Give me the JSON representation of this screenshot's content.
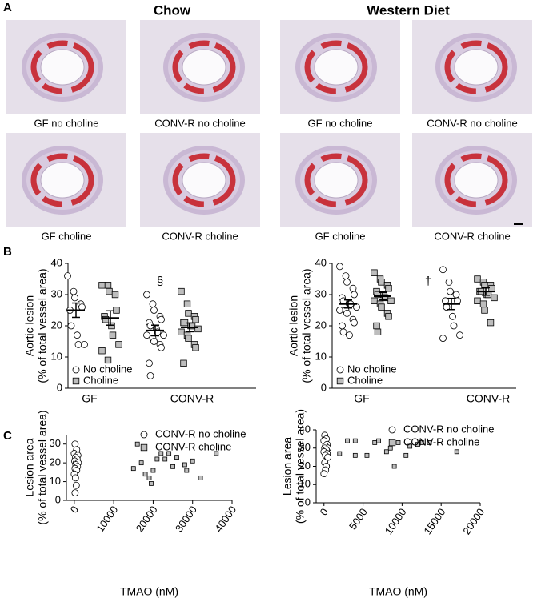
{
  "panel_labels": [
    "A",
    "B",
    "C"
  ],
  "histology": {
    "groups": [
      {
        "title": "Chow",
        "captions": [
          "GF no choline",
          "CONV-R no choline",
          "GF choline",
          "CONV-R choline"
        ]
      },
      {
        "title": "Western Diet",
        "captions": [
          "GF no choline",
          "CONV-R no choline",
          "GF choline",
          "CONV-R choline"
        ]
      }
    ]
  },
  "chart_data": [
    {
      "type": "dot",
      "categories": [
        "GF",
        "CONV-R"
      ],
      "ylabel": [
        "Aortic lesion",
        "(% of total vessel area)"
      ],
      "ylim": [
        0,
        40
      ],
      "yticks": [
        0,
        10,
        20,
        30,
        40
      ],
      "annotation": "§",
      "legend": "lower left",
      "series": [
        {
          "name": "No choline",
          "marker": "circle",
          "color": "#ffffff",
          "values": [
            [
              36,
              31,
              29,
              27,
              26,
              25,
              20,
              17,
              14,
              14
            ],
            [
              30,
              27,
              25,
              23,
              22,
              21,
              20,
              19,
              18,
              17,
              17,
              16,
              15,
              14,
              13,
              8,
              4
            ]
          ],
          "mean": [
            25,
            18.5
          ],
          "sem": [
            2.3,
            1.7
          ]
        },
        {
          "name": "Choline",
          "marker": "square",
          "color": "#bdbdbd",
          "values": [
            [
              33,
              33,
              31,
              30,
              25,
              23,
              22,
              20,
              17,
              14,
              12,
              9
            ],
            [
              31,
              27,
              24,
              23,
              22,
              21,
              21,
              20,
              20,
              19,
              18,
              17,
              16,
              14,
              13,
              8
            ]
          ],
          "mean": [
            22.5,
            19.5
          ],
          "sem": [
            2.3,
            1.4
          ]
        }
      ]
    },
    {
      "type": "dot",
      "categories": [
        "GF",
        "CONV-R"
      ],
      "ylabel": [
        "Aortic lesion",
        "(% of total vessel area)"
      ],
      "ylim": [
        0,
        40
      ],
      "yticks": [
        0,
        10,
        20,
        30,
        40
      ],
      "annotation": "†",
      "legend": "lower left",
      "series": [
        {
          "name": "No choline",
          "marker": "circle",
          "color": "#ffffff",
          "values": [
            [
              39,
              36,
              34,
              32,
              30,
              29,
              28,
              27,
              27,
              26,
              25,
              25,
              24,
              22,
              21,
              20,
              18,
              17
            ],
            [
              38,
              34,
              31,
              30,
              28,
              28,
              26,
              23,
              20,
              17,
              16
            ]
          ],
          "mean": [
            27,
            27
          ],
          "sem": [
            1.3,
            1.8
          ]
        },
        {
          "name": "Choline",
          "marker": "square",
          "color": "#bdbdbd",
          "values": [
            [
              37,
              35,
              34,
              33,
              32,
              31,
              30,
              30,
              29,
              28,
              28,
              27,
              26,
              24,
              23,
              20,
              18
            ],
            [
              35,
              34,
              33,
              33,
              32,
              31,
              31,
              30,
              30,
              29,
              28,
              27,
              25,
              21
            ]
          ],
          "mean": [
            29.5,
            31
          ],
          "sem": [
            1.2,
            1.2
          ]
        }
      ]
    },
    {
      "type": "scatter",
      "xlabel": "TMAO (nM)",
      "ylabel": [
        "Lesion area",
        "(% of total vessel area)"
      ],
      "xlim": [
        -2000,
        40000
      ],
      "xticks": [
        0,
        10000,
        20000,
        30000,
        40000
      ],
      "ylim": [
        0,
        35
      ],
      "yticks": [
        0,
        10,
        20,
        30
      ],
      "legend": "upper right",
      "series": [
        {
          "name": "CONV-R no choline",
          "marker": "circle",
          "color": "#ffffff",
          "x": [
            200,
            600,
            0,
            900,
            300,
            700,
            100,
            500,
            1000,
            400,
            800,
            200,
            600,
            0,
            300,
            500,
            200
          ],
          "y": [
            30,
            27,
            25,
            24,
            23,
            22,
            21,
            20,
            20,
            19,
            18,
            17,
            16,
            14,
            12,
            8,
            4
          ]
        },
        {
          "name": "CONV-R choline",
          "marker": "square",
          "color": "#bdbdbd",
          "x": [
            16000,
            15000,
            17000,
            18000,
            19000,
            20000,
            19500,
            21000,
            22000,
            23000,
            24000,
            25000,
            26000,
            28000,
            28500,
            30000,
            32000,
            36000
          ],
          "y": [
            30,
            17,
            20,
            14,
            12,
            16,
            9,
            22,
            25,
            22,
            25,
            18,
            23,
            19,
            16,
            21,
            12,
            25
          ]
        }
      ]
    },
    {
      "type": "scatter",
      "xlabel": "TMAO (nM)",
      "ylabel": [
        "Lesion area",
        "(% of total vessel area)"
      ],
      "xlim": [
        -1000,
        20000
      ],
      "xticks": [
        0,
        5000,
        10000,
        15000,
        20000
      ],
      "ylim": [
        0,
        40
      ],
      "yticks": [
        0,
        10,
        20,
        30,
        40
      ],
      "legend": "upper right",
      "series": [
        {
          "name": "CONV-R no choline",
          "marker": "circle",
          "color": "#ffffff",
          "x": [
            100,
            300,
            0,
            400,
            200,
            500,
            100,
            300,
            0,
            400,
            200,
            500,
            100,
            300,
            200,
            0
          ],
          "y": [
            37,
            35,
            34,
            32,
            31,
            30,
            30,
            29,
            28,
            27,
            26,
            25,
            22,
            20,
            18,
            16
          ]
        },
        {
          "name": "CONV-R choline",
          "marker": "square",
          "color": "#bdbdbd",
          "x": [
            2000,
            3000,
            4000,
            4000,
            5500,
            6500,
            7000,
            8000,
            8500,
            9000,
            9500,
            10500,
            11000,
            12000,
            12500,
            13500,
            17000
          ],
          "y": [
            27,
            34,
            34,
            26,
            26,
            33,
            34,
            28,
            30,
            20,
            33,
            26,
            31,
            32,
            33,
            33,
            28
          ]
        }
      ]
    }
  ]
}
